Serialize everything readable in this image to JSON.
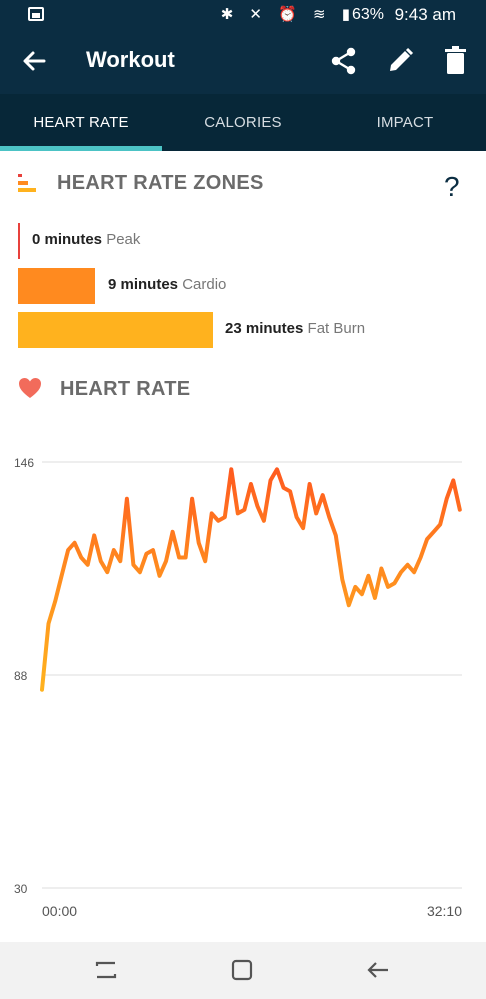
{
  "status_bar": {
    "battery": "63%",
    "time": "9:43 am"
  },
  "app_bar": {
    "title": "Workout"
  },
  "tabs": [
    {
      "label": "HEART RATE",
      "active": true
    },
    {
      "label": "CALORIES",
      "active": false
    },
    {
      "label": "IMPACT",
      "active": false
    }
  ],
  "zones": {
    "title": "HEART RATE ZONES",
    "help_label": "?",
    "items": [
      {
        "minutes": "0 minutes",
        "label": "Peak",
        "value": 0,
        "color": "#e8413c"
      },
      {
        "minutes": "9 minutes",
        "label": "Cardio",
        "value": 9,
        "color": "#ff8a1f"
      },
      {
        "minutes": "23 minutes",
        "label": "Fat Burn",
        "value": 23,
        "color": "#ffb21e"
      }
    ]
  },
  "heart_rate": {
    "title": "HEART RATE"
  },
  "chart_data": {
    "type": "line",
    "title": "",
    "xlabel": "",
    "ylabel": "",
    "x_ticks": [
      "00:00",
      "32:10"
    ],
    "y_ticks": [
      146,
      88,
      30
    ],
    "ylim": [
      30,
      146
    ],
    "x_range_minutes": [
      0,
      32.17
    ],
    "grid": true,
    "series": [
      {
        "x": [
          0,
          0.5,
          1,
          1.5,
          2,
          2.5,
          3,
          3.5,
          4,
          4.5,
          5,
          5.5,
          6,
          6.5,
          7,
          7.5,
          8,
          8.5,
          9,
          9.5,
          10,
          10.5,
          11,
          11.5,
          12,
          12.5,
          13,
          13.5,
          14,
          14.5,
          15,
          15.5,
          16,
          16.5,
          17,
          17.5,
          18,
          18.5,
          19,
          19.5,
          20,
          20.5,
          21,
          21.5,
          22,
          22.5,
          23,
          23.5,
          24,
          24.5,
          25,
          25.5,
          26,
          26.5,
          27,
          27.5,
          28,
          28.5,
          29,
          29.5,
          30,
          30.5,
          31,
          31.5,
          32
        ],
        "values": [
          84,
          102,
          108,
          115,
          122,
          124,
          120,
          118,
          126,
          119,
          116,
          122,
          119,
          136,
          118,
          116,
          121,
          122,
          115,
          119,
          127,
          120,
          120,
          136,
          124,
          119,
          132,
          130,
          131,
          144,
          132,
          133,
          140,
          134,
          130,
          141,
          144,
          139,
          138,
          131,
          128,
          140,
          132,
          137,
          131,
          126,
          114,
          107,
          112,
          110,
          115,
          109,
          117,
          112,
          113,
          116,
          118,
          116,
          120,
          125,
          127,
          129,
          136,
          141,
          133
        ]
      }
    ]
  }
}
